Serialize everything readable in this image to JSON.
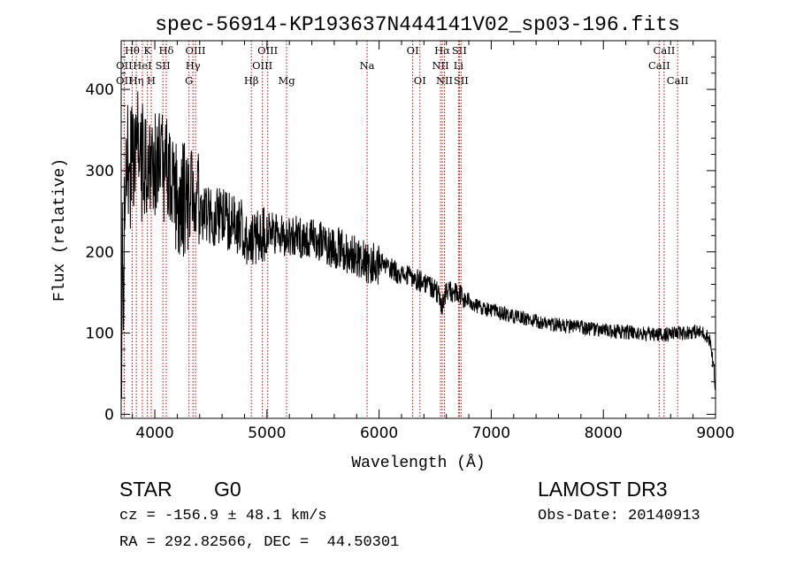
{
  "chart_data": {
    "type": "line",
    "title": "spec-56914-KP193637N444141V02_sp03-196.fits",
    "xlabel": "Wavelength (Å)",
    "ylabel": "Flux (relative)",
    "xlim": [
      3700,
      9000
    ],
    "ylim": [
      -5,
      460
    ],
    "xticks": [
      4000,
      5000,
      6000,
      7000,
      8000,
      9000
    ],
    "yticks": [
      0,
      100,
      200,
      300,
      400
    ],
    "series": [
      {
        "name": "spectrum",
        "x": [
          3705,
          3740,
          3780,
          3820,
          3860,
          3900,
          3950,
          4000,
          4050,
          4100,
          4150,
          4200,
          4250,
          4300,
          4350,
          4400,
          4450,
          4500,
          4600,
          4700,
          4800,
          4860,
          4900,
          5000,
          5100,
          5200,
          5300,
          5400,
          5500,
          5600,
          5700,
          5800,
          5900,
          6000,
          6100,
          6200,
          6300,
          6400,
          6500,
          6563,
          6600,
          6700,
          6800,
          6900,
          7000,
          7100,
          7200,
          7300,
          7400,
          7500,
          7600,
          7700,
          7800,
          7900,
          8000,
          8100,
          8200,
          8300,
          8400,
          8500,
          8600,
          8700,
          8800,
          8900,
          8950,
          8990
        ],
        "y": [
          60,
          330,
          300,
          320,
          330,
          300,
          310,
          315,
          300,
          290,
          280,
          270,
          265,
          260,
          255,
          250,
          250,
          245,
          240,
          235,
          230,
          205,
          220,
          225,
          220,
          220,
          218,
          215,
          212,
          205,
          200,
          195,
          185,
          185,
          180,
          172,
          168,
          163,
          155,
          135,
          152,
          148,
          138,
          132,
          128,
          124,
          120,
          118,
          114,
          112,
          110,
          108,
          107,
          105,
          103,
          102,
          101,
          100,
          98,
          98,
          99,
          100,
          102,
          100,
          92,
          50
        ]
      }
    ],
    "line_markers": [
      {
        "label": "Hθ",
        "x": 3798,
        "row": 1
      },
      {
        "label": "K",
        "x": 3934,
        "row": 1
      },
      {
        "label": "Hδ",
        "x": 4102,
        "row": 1
      },
      {
        "label": "OIII",
        "x": 4363,
        "row": 1
      },
      {
        "label": "OIII",
        "x": 5007,
        "row": 1
      },
      {
        "label": "OI",
        "x": 6300,
        "row": 1
      },
      {
        "label": "Hα",
        "x": 6563,
        "row": 1
      },
      {
        "label": "SII",
        "x": 6716,
        "row": 1
      },
      {
        "label": "CaII",
        "x": 8542,
        "row": 1
      },
      {
        "label": "OII",
        "x": 3727,
        "row": 2
      },
      {
        "label": "HeI",
        "x": 3889,
        "row": 2
      },
      {
        "label": "SII",
        "x": 4072,
        "row": 2
      },
      {
        "label": "Hγ",
        "x": 4340,
        "row": 2
      },
      {
        "label": "OIII",
        "x": 4959,
        "row": 2
      },
      {
        "label": "Na",
        "x": 5893,
        "row": 2
      },
      {
        "label": "NII",
        "x": 6548,
        "row": 2
      },
      {
        "label": "Li",
        "x": 6708,
        "row": 2
      },
      {
        "label": "CaII",
        "x": 8498,
        "row": 2
      },
      {
        "label": "OII",
        "x": 3727,
        "row": 3
      },
      {
        "label": "Hη",
        "x": 3835,
        "row": 3
      },
      {
        "label": "H",
        "x": 3968,
        "row": 3
      },
      {
        "label": "G",
        "x": 4305,
        "row": 3
      },
      {
        "label": "Hβ",
        "x": 4861,
        "row": 3
      },
      {
        "label": "Mg",
        "x": 5175,
        "row": 3
      },
      {
        "label": "OI",
        "x": 6364,
        "row": 3
      },
      {
        "label": "NII",
        "x": 6583,
        "row": 3
      },
      {
        "label": "SII",
        "x": 6731,
        "row": 3
      },
      {
        "label": "CaII",
        "x": 8662,
        "row": 3
      }
    ]
  },
  "footer": {
    "object_class": "STAR",
    "subclass": "G0",
    "survey": "LAMOST DR3",
    "redshift_line": "cz = -156.9 ± 48.1 km/s",
    "obs_date_line": "Obs-Date: 20140913",
    "coords_line": "RA = 292.82566, DEC =  44.50301"
  },
  "colors": {
    "spectrum": "#000000",
    "marker_lines": "#cc0000",
    "frame": "#000000"
  }
}
